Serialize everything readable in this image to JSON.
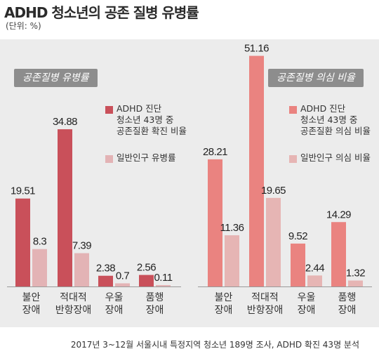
{
  "header": {
    "title": "ADHD 청소년의 공존 질병 유병률",
    "unit": "(단위: %)"
  },
  "colors": {
    "left_primary": "#c9505a",
    "left_secondary": "#e3b3b5",
    "right_primary": "#ea8380",
    "right_secondary": "#e6b5b4",
    "panel": "#ececec",
    "badge": "#8d8d8d"
  },
  "footnote": "2017년 3~12월 서울시내 특정지역 청소년 189명 조사, ADHD 확진 43명 분석",
  "chart_data": [
    {
      "type": "bar",
      "title": "공존질병 유병률",
      "categories": [
        [
          "불안",
          "장애"
        ],
        [
          "적대적",
          "반항장애"
        ],
        [
          "우울",
          "장애"
        ],
        [
          "품행",
          "장애"
        ]
      ],
      "series": [
        {
          "name": "ADHD 진단 청소년 43명 중 공존질환 확진 비율",
          "legend_lines": [
            "ADHD 진단",
            "청소년 43명 중",
            "공존질환 확진 비율"
          ],
          "values": [
            19.51,
            34.88,
            2.38,
            2.56
          ],
          "labels": [
            "19.51",
            "34.88",
            "2.38",
            "2.56"
          ]
        },
        {
          "name": "일반인구 유병률",
          "legend_lines": [
            "일반인구 유병률"
          ],
          "values": [
            8.3,
            7.39,
            0.7,
            0.11
          ],
          "labels": [
            "8.3",
            "7.39",
            "0.7",
            "0.11"
          ]
        }
      ],
      "ylim": [
        0,
        55
      ]
    },
    {
      "type": "bar",
      "title": "공존질병 의심 비율",
      "categories": [
        [
          "불안",
          "장애"
        ],
        [
          "적대적",
          "반항장애"
        ],
        [
          "우울",
          "장애"
        ],
        [
          "품행",
          "장애"
        ]
      ],
      "series": [
        {
          "name": "ADHD 진단 청소년 43명 중 공존질환 의심 비율",
          "legend_lines": [
            "ADHD 진단",
            "청소년 43명 중",
            "공존질환 의심 비율"
          ],
          "values": [
            28.21,
            51.16,
            9.52,
            14.29
          ],
          "labels": [
            "28.21",
            "51.16",
            "9.52",
            "14.29"
          ]
        },
        {
          "name": "일반인구 의심 비율",
          "legend_lines": [
            "일반인구 의심 비율"
          ],
          "values": [
            11.36,
            19.65,
            2.44,
            1.32
          ],
          "labels": [
            "11.36",
            "19.65",
            "2.44",
            "1.32"
          ]
        }
      ],
      "ylim": [
        0,
        55
      ]
    }
  ]
}
